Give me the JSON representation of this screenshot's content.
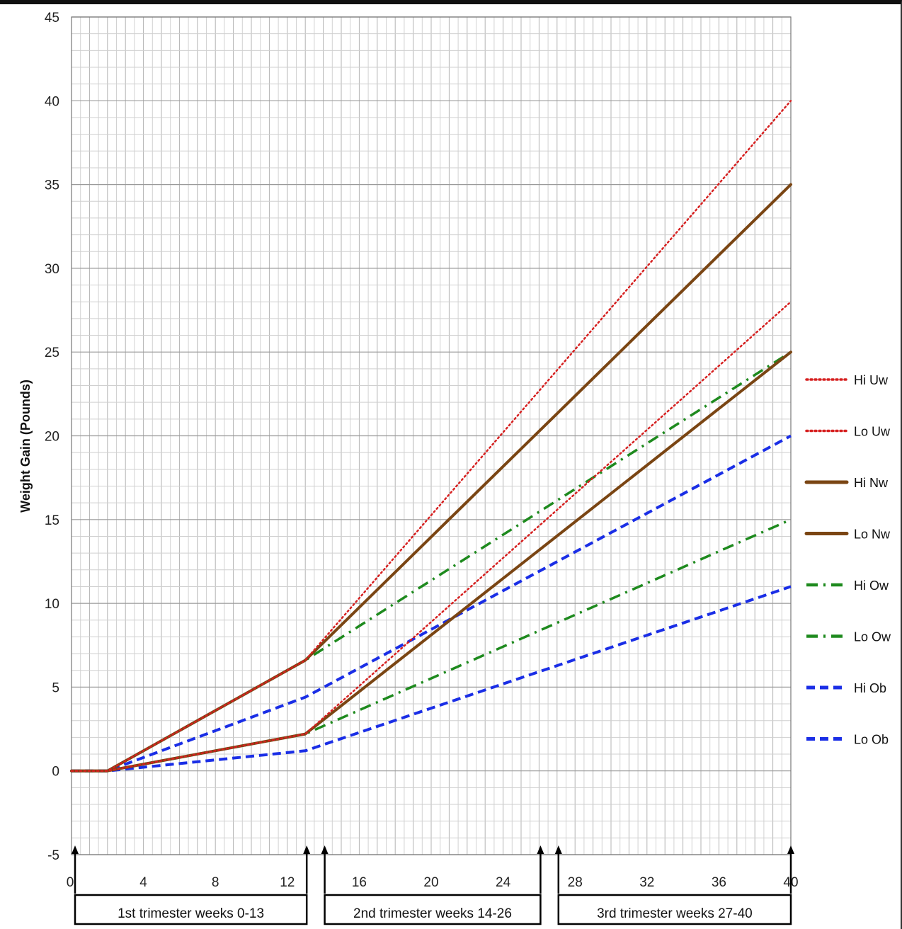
{
  "chart_data": {
    "type": "line",
    "title": "",
    "xlabel": "",
    "ylabel": "Weight Gain  (Pounds)",
    "xlim": [
      0,
      40
    ],
    "ylim": [
      -5,
      45
    ],
    "x_ticks": [
      0,
      4,
      8,
      12,
      16,
      20,
      24,
      28,
      32,
      36,
      40
    ],
    "y_ticks": [
      -5,
      0,
      5,
      10,
      15,
      20,
      25,
      30,
      35,
      40,
      45
    ],
    "grid": true,
    "legend_position": "right",
    "trimesters": [
      {
        "label": "1st trimester weeks 0-13",
        "start": 0,
        "end": 13
      },
      {
        "label": "2nd trimester weeks 14-26",
        "start": 14,
        "end": 26
      },
      {
        "label": "3rd trimester weeks 27-40",
        "start": 27,
        "end": 40
      }
    ],
    "series": [
      {
        "name": "Hi Uw",
        "color": "#d62020",
        "style": "dotted",
        "points": [
          [
            0,
            0
          ],
          [
            2,
            0
          ],
          [
            13,
            6.6
          ],
          [
            40,
            40
          ]
        ]
      },
      {
        "name": "Lo Uw",
        "color": "#d62020",
        "style": "dotted",
        "points": [
          [
            0,
            0
          ],
          [
            2,
            0
          ],
          [
            13,
            2.2
          ],
          [
            40,
            28
          ]
        ]
      },
      {
        "name": "Hi Nw",
        "color": "#7a4513",
        "style": "solid",
        "points": [
          [
            0,
            0
          ],
          [
            2,
            0
          ],
          [
            13,
            6.6
          ],
          [
            40,
            35
          ]
        ]
      },
      {
        "name": "Lo Nw",
        "color": "#7a4513",
        "style": "solid",
        "points": [
          [
            0,
            0
          ],
          [
            2,
            0
          ],
          [
            13,
            2.2
          ],
          [
            40,
            25
          ]
        ]
      },
      {
        "name": "Hi Ow",
        "color": "#1e8a1e",
        "style": "dashdot",
        "points": [
          [
            0,
            0
          ],
          [
            2,
            0
          ],
          [
            13,
            6.6
          ],
          [
            40,
            25
          ]
        ]
      },
      {
        "name": "Lo Ow",
        "color": "#1e8a1e",
        "style": "dashdot",
        "points": [
          [
            0,
            0
          ],
          [
            2,
            0
          ],
          [
            13,
            2.2
          ],
          [
            40,
            15
          ]
        ]
      },
      {
        "name": "Hi Ob",
        "color": "#1a2ee6",
        "style": "dashed",
        "points": [
          [
            0,
            0
          ],
          [
            2,
            0
          ],
          [
            13,
            4.4
          ],
          [
            40,
            20
          ]
        ]
      },
      {
        "name": "Lo Ob",
        "color": "#1a2ee6",
        "style": "dashed",
        "points": [
          [
            0,
            0
          ],
          [
            2,
            0
          ],
          [
            13,
            1.2
          ],
          [
            40,
            11
          ]
        ]
      }
    ]
  }
}
